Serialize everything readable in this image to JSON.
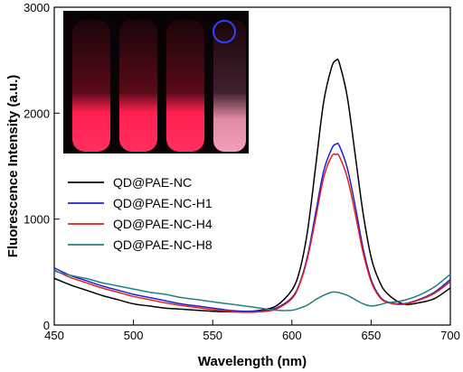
{
  "chart_data": {
    "type": "line",
    "xlabel": "Wavelength (nm)",
    "ylabel": "Fluorescence Intensity (a.u.)",
    "xlim": [
      450,
      700
    ],
    "ylim": [
      0,
      3000
    ],
    "x_ticks": [
      450,
      500,
      550,
      600,
      650,
      700
    ],
    "y_ticks": [
      0,
      1000,
      2000,
      3000
    ],
    "grid": false,
    "legend_position": "middle-left",
    "x": [
      450,
      460,
      470,
      480,
      490,
      500,
      510,
      520,
      530,
      540,
      550,
      560,
      570,
      580,
      590,
      600,
      605,
      610,
      615,
      620,
      625,
      628,
      630,
      635,
      640,
      645,
      650,
      655,
      660,
      670,
      680,
      690,
      700
    ],
    "series": [
      {
        "name": "QD@PAE-NC",
        "color": "#000000",
        "values": [
          440,
          380,
          330,
          280,
          240,
          200,
          180,
          160,
          150,
          140,
          130,
          125,
          125,
          140,
          180,
          330,
          520,
          900,
          1500,
          2100,
          2430,
          2500,
          2470,
          2150,
          1600,
          1050,
          640,
          420,
          300,
          200,
          210,
          250,
          350
        ]
      },
      {
        "name": "QD@PAE-NC-H1",
        "color": "#2020d0",
        "values": [
          540,
          470,
          420,
          370,
          330,
          290,
          260,
          230,
          200,
          180,
          160,
          140,
          130,
          135,
          160,
          260,
          400,
          660,
          1060,
          1450,
          1660,
          1710,
          1690,
          1480,
          1120,
          720,
          430,
          280,
          220,
          200,
          240,
          310,
          430
        ]
      },
      {
        "name": "QD@PAE-NC-H4",
        "color": "#e02020",
        "values": [
          520,
          450,
          400,
          350,
          310,
          270,
          240,
          210,
          185,
          165,
          145,
          130,
          120,
          125,
          150,
          250,
          390,
          640,
          1010,
          1390,
          1590,
          1610,
          1590,
          1390,
          1050,
          680,
          410,
          270,
          215,
          195,
          235,
          300,
          410
        ]
      },
      {
        "name": "QD@PAE-NC-H8",
        "color": "#208080",
        "values": [
          510,
          470,
          440,
          400,
          370,
          340,
          310,
          290,
          260,
          240,
          220,
          200,
          180,
          160,
          140,
          140,
          160,
          190,
          240,
          280,
          310,
          310,
          305,
          280,
          240,
          200,
          180,
          190,
          210,
          230,
          280,
          360,
          480
        ]
      }
    ]
  }
}
